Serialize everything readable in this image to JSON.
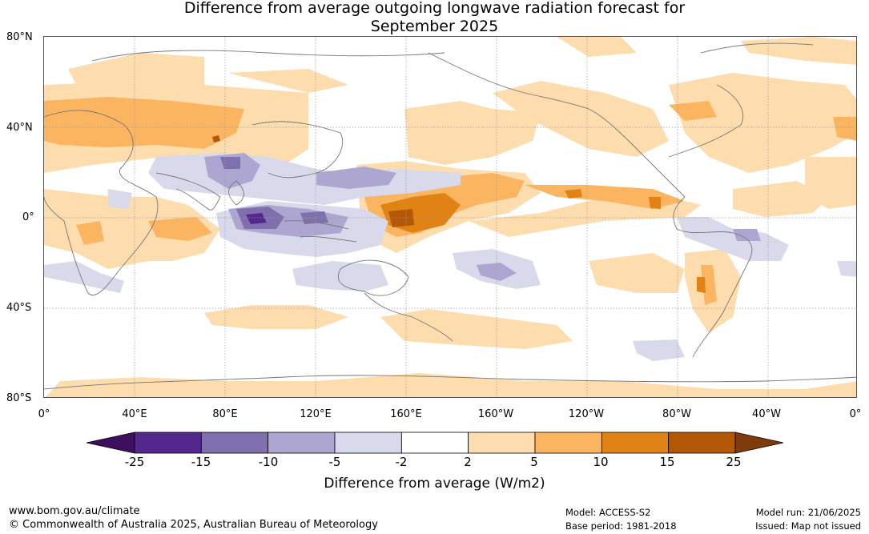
{
  "title": {
    "line1": "Difference from average outgoing longwave radiation forecast for",
    "line2": "September 2025"
  },
  "map": {
    "lat_labels": [
      "80°N",
      "40°N",
      "0°",
      "40°S",
      "80°S"
    ],
    "lon_labels": [
      "0°",
      "40°E",
      "80°E",
      "120°E",
      "160°E",
      "160°W",
      "120°W",
      "80°W",
      "40°W",
      "0°"
    ]
  },
  "colorbar": {
    "label": "Difference from average (W/m2)",
    "ticks": [
      "-25",
      "-15",
      "-10",
      "-5",
      "-2",
      "2",
      "5",
      "10",
      "15",
      "25"
    ],
    "colors": [
      "#3d0f5e",
      "#54278f",
      "#806fad",
      "#ada6d1",
      "#d9d9ec",
      "#ffffff",
      "#fddcae",
      "#fbb561",
      "#e08214",
      "#b35806",
      "#7f3b08"
    ]
  },
  "footer": {
    "website": "www.bom.gov.au/climate",
    "copyright": "© Commonwealth of Australia 2025, Australian Bureau of Meteorology",
    "model": "Model: ACCESS-S2",
    "base_period": "Base period: 1981-2018",
    "model_run": "Model run: 21/06/2025",
    "issued": "Issued: Map not issued"
  }
}
